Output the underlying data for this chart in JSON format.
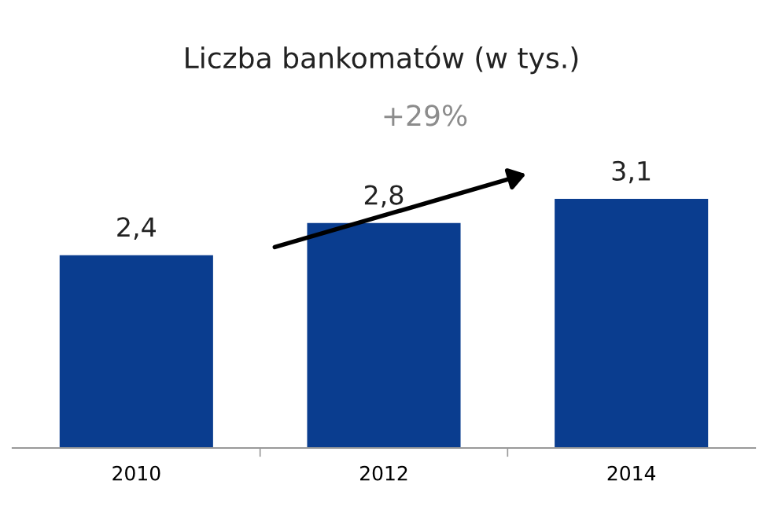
{
  "chart_data": {
    "type": "bar",
    "title": "Liczba bankomatów (w tys.)",
    "categories": [
      "2010",
      "2012",
      "2014"
    ],
    "values": [
      2.4,
      2.8,
      3.1
    ],
    "value_labels": [
      "2,4",
      "2,8",
      "3,1"
    ],
    "color": "#0a3d8f",
    "grid": false,
    "annotations": [
      "+29%"
    ]
  }
}
